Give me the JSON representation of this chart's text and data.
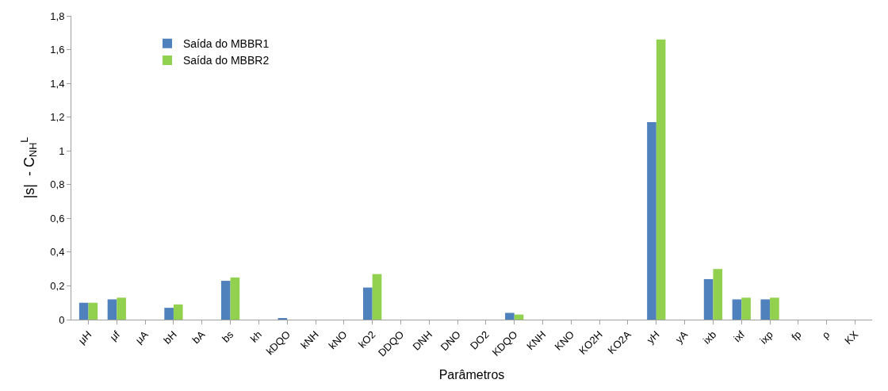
{
  "chart_data": {
    "type": "bar",
    "xlabel": "Parâmetros",
    "ylabel": "|s|  - C$_{NH}$$^{L}$",
    "categories": [
      "μH",
      "μf",
      "μA",
      "bH",
      "bA",
      "bs",
      "kh",
      "kDQO",
      "kNH",
      "kNO",
      "kO2",
      "DDQO",
      "DNH",
      "DNO",
      "DO2",
      "KDQO",
      "KNH",
      "KNO",
      "KO2H",
      "KO2A",
      "yH",
      "yA",
      "ixb",
      "ixf",
      "ixp",
      "fp",
      "ρ",
      "KX"
    ],
    "series": [
      {
        "name": "Saída do MBBR1",
        "color": "#4f81bd",
        "values": [
          0.1,
          0.12,
          0,
          0.07,
          0,
          0.23,
          0,
          0.005,
          0,
          0,
          0.19,
          0,
          0,
          0,
          0,
          0.04,
          0,
          0,
          0,
          0,
          1.17,
          0,
          0.24,
          0.12,
          0.12,
          0,
          0,
          0
        ]
      },
      {
        "name": "Saída do MBBR2",
        "color": "#92d050",
        "values": [
          0.1,
          0.13,
          0,
          0.09,
          0,
          0.25,
          0,
          0,
          0,
          0,
          0.27,
          0,
          0,
          0,
          0,
          0.03,
          0,
          0,
          0,
          0,
          1.66,
          0,
          0.3,
          0.13,
          0.13,
          0,
          0,
          0
        ]
      }
    ],
    "ylim": [
      0,
      1.8
    ],
    "yticks": [
      0,
      {
        "value": 0.2,
        "label": "0,2"
      },
      {
        "value": 0.4,
        "label": "0,4"
      },
      {
        "value": 0.6,
        "label": "0,6"
      },
      {
        "value": 0.8,
        "label": "0,8"
      },
      1,
      {
        "value": 1.2,
        "label": "1,2"
      },
      {
        "value": 1.4,
        "label": "1,4"
      },
      {
        "value": 1.6,
        "label": "1,6"
      },
      {
        "value": 1.8,
        "label": "1,8"
      }
    ],
    "legend": "top left",
    "grid": false
  }
}
